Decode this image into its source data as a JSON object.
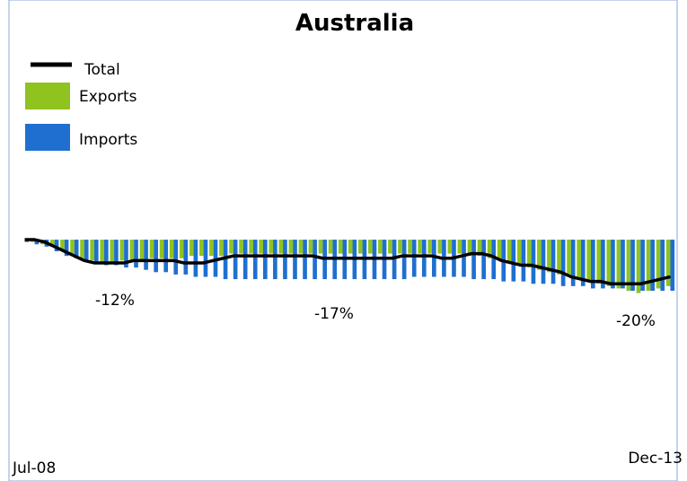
{
  "chart_data": {
    "type": "bar-line",
    "title": "Australia",
    "categories": [
      "Jul-08",
      null,
      null,
      null,
      null,
      null,
      null,
      null,
      null,
      null,
      null,
      null,
      null,
      null,
      null,
      null,
      null,
      null,
      null,
      null,
      null,
      null,
      null,
      null,
      null,
      null,
      null,
      null,
      null,
      null,
      null,
      null,
      null,
      null,
      null,
      null,
      null,
      null,
      null,
      null,
      null,
      null,
      null,
      null,
      null,
      null,
      null,
      null,
      null,
      null,
      null,
      null,
      null,
      null,
      null,
      null,
      null,
      null,
      null,
      null,
      null,
      null,
      null,
      null,
      null,
      "Dec-13"
    ],
    "series": [
      {
        "name": "Exports",
        "kind": "bar",
        "color": "#8fc31f",
        "values": [
          0,
          -1,
          -2,
          -3,
          -5,
          -7,
          -8,
          -9,
          -10,
          -10,
          -9,
          -9,
          -9,
          -8,
          -8,
          -8,
          -8,
          -7,
          -7,
          -7,
          -7,
          -6,
          -6,
          -6,
          -6,
          -6,
          -6,
          -6,
          -6,
          -6,
          -6,
          -6,
          -6,
          -6,
          -6,
          -6,
          -6,
          -6,
          -6,
          -6,
          -6,
          -6,
          -6,
          -6,
          -6,
          -7,
          -7,
          -8,
          -9,
          -10,
          -11,
          -12,
          -13,
          -14,
          -15,
          -16,
          -17,
          -18,
          -19,
          -20,
          -21,
          -22,
          -23,
          -22,
          -21,
          -20
        ]
      },
      {
        "name": "Imports",
        "kind": "bar",
        "color": "#1f6fd1",
        "values": [
          -1,
          -2,
          -3,
          -5,
          -7,
          -8,
          -9,
          -10,
          -11,
          -11,
          -12,
          -12,
          -13,
          -14,
          -14,
          -15,
          -15,
          -16,
          -16,
          -16,
          -17,
          -17,
          -17,
          -17,
          -17,
          -17,
          -17,
          -17,
          -17,
          -17,
          -17,
          -17,
          -17,
          -17,
          -17,
          -17,
          -17,
          -17,
          -17,
          -16,
          -16,
          -16,
          -16,
          -16,
          -16,
          -17,
          -17,
          -17,
          -18,
          -18,
          -18,
          -19,
          -19,
          -19,
          -20,
          -20,
          -20,
          -21,
          -21,
          -21,
          -21,
          -22,
          -22,
          -22,
          -22,
          -22
        ]
      },
      {
        "name": "Total",
        "kind": "line",
        "color": "#000000",
        "values": [
          0,
          0,
          -1,
          -3,
          -5,
          -7,
          -9,
          -10,
          -10,
          -10,
          -10,
          -9,
          -9,
          -9,
          -9,
          -9,
          -10,
          -10,
          -10,
          -9,
          -8,
          -7,
          -7,
          -7,
          -7,
          -7,
          -7,
          -7,
          -7,
          -7,
          -8,
          -8,
          -8,
          -8,
          -8,
          -8,
          -8,
          -8,
          -7,
          -7,
          -7,
          -7,
          -8,
          -8,
          -7,
          -6,
          -6,
          -7,
          -9,
          -10,
          -11,
          -11,
          -12,
          -13,
          -14,
          -16,
          -17,
          -18,
          -18,
          -19,
          -19,
          -19,
          -19,
          -18,
          -17,
          -16
        ]
      }
    ],
    "annotations": [
      "-12%",
      "-17%",
      "-20%"
    ],
    "ylim": [
      -90,
      80
    ]
  }
}
